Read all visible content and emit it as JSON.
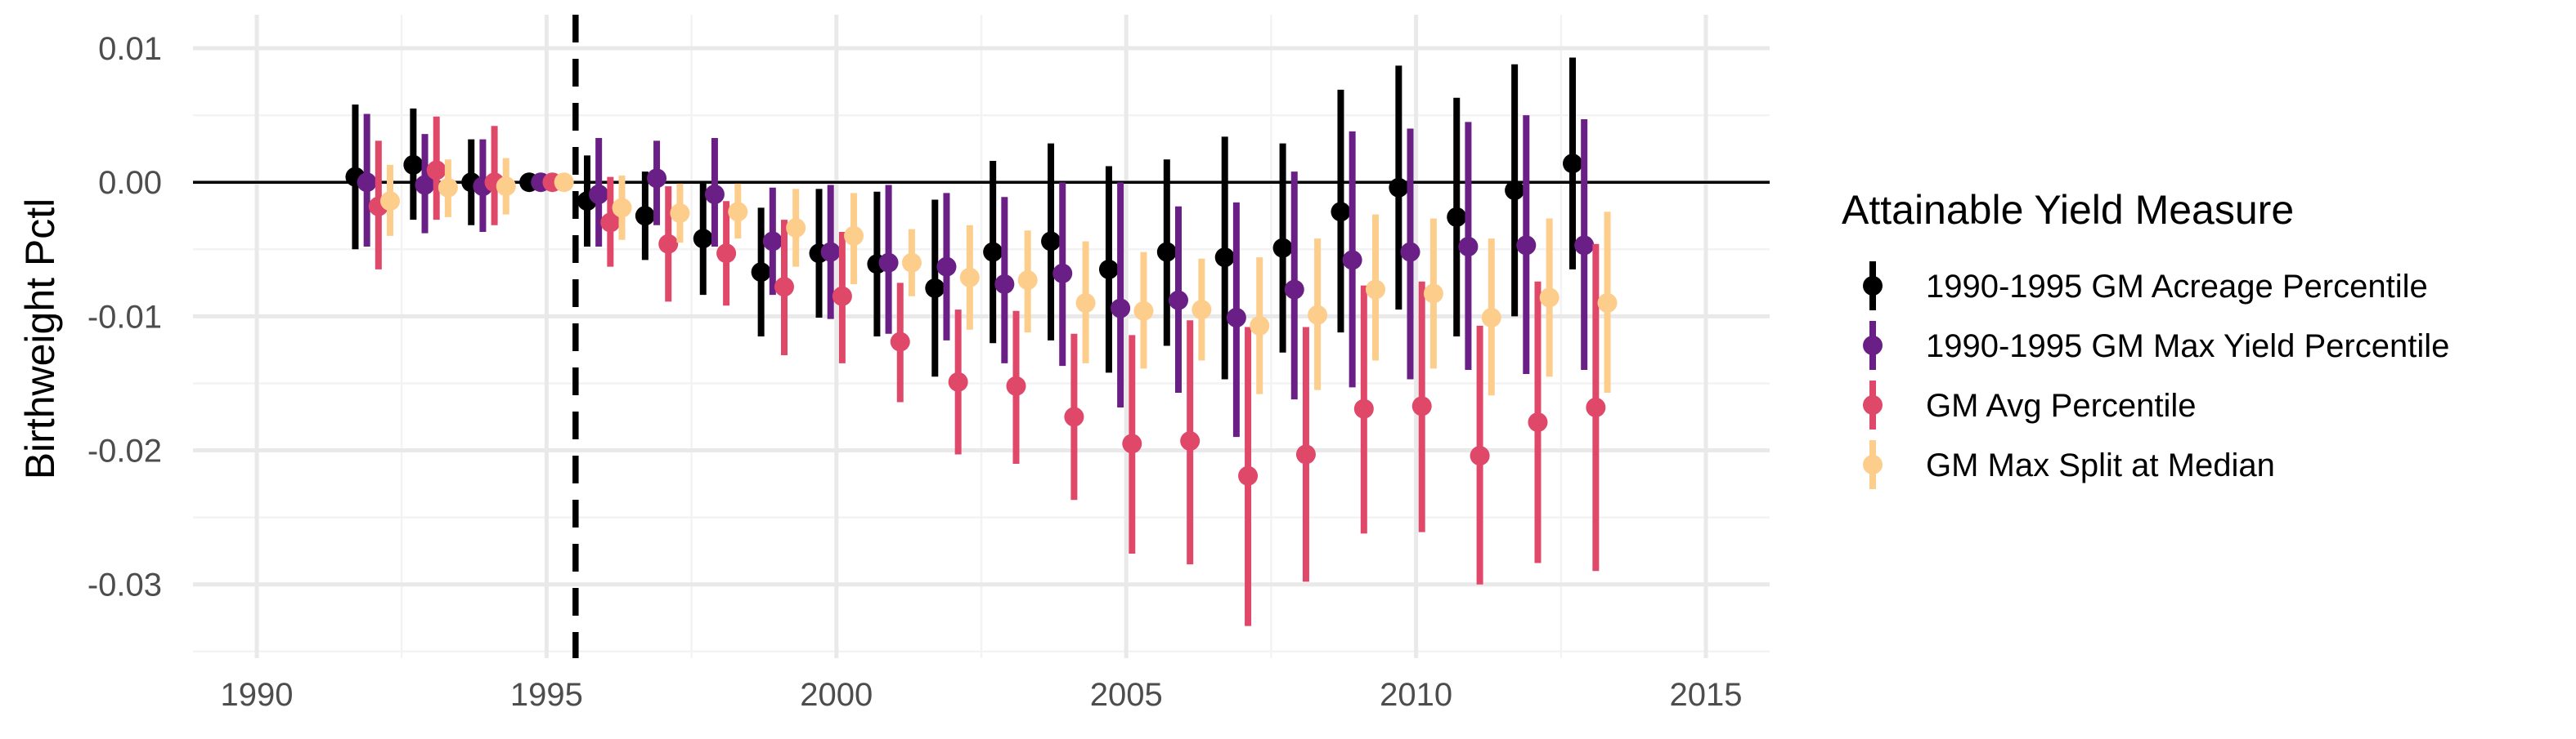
{
  "chart_data": {
    "type": "scatter",
    "title": "",
    "xlabel": "",
    "ylabel": "Birthweight Pctl",
    "xlim": [
      1988.9,
      2016.1
    ],
    "ylim": [
      -0.0355,
      0.0125
    ],
    "x_ticks": [
      1990,
      1995,
      2000,
      2005,
      2010,
      2015
    ],
    "x_tick_labels": [
      "1990",
      "1995",
      "2000",
      "2005",
      "2010",
      "2015"
    ],
    "y_ticks": [
      0.01,
      0.0,
      -0.01,
      -0.02,
      -0.03
    ],
    "y_tick_labels": [
      "0.01",
      "0.00",
      "-0.01",
      "-0.02",
      "-0.03"
    ],
    "grid": true,
    "hline_y": 0,
    "vline_x": 1995.5,
    "legend": {
      "title": "Attainable Yield Measure",
      "position": "right"
    },
    "dodge_width": 0.2,
    "series": [
      {
        "name": "1990-1995 GM Acreage Percentile",
        "color": "#000000",
        "x": [
          1992,
          1993,
          1994,
          1995,
          1996,
          1997,
          1998,
          1999,
          2000,
          2001,
          2002,
          2003,
          2004,
          2005,
          2006,
          2007,
          2008,
          2009,
          2010,
          2011,
          2012,
          2013
        ],
        "y": [
          0.0004,
          0.0013,
          0.0,
          0.0,
          -0.0014,
          -0.0025,
          -0.0042,
          -0.0067,
          -0.0053,
          -0.0061,
          -0.0079,
          -0.0052,
          -0.0044,
          -0.0065,
          -0.0052,
          -0.0056,
          -0.0049,
          -0.0022,
          -0.0004,
          -0.0026,
          -0.0006,
          0.0014
        ],
        "lo": [
          -0.005,
          -0.0028,
          -0.0032,
          0.0,
          -0.0048,
          -0.0058,
          -0.0084,
          -0.0115,
          -0.0101,
          -0.0115,
          -0.0145,
          -0.012,
          -0.0118,
          -0.0142,
          -0.0122,
          -0.0147,
          -0.0127,
          -0.0112,
          -0.0095,
          -0.0115,
          -0.01,
          -0.0065
        ],
        "hi": [
          0.0058,
          0.0055,
          0.0032,
          0.0,
          0.002,
          0.0008,
          0.0,
          -0.0019,
          -0.0005,
          -0.0007,
          -0.0013,
          0.0016,
          0.0029,
          0.0012,
          0.0017,
          0.0034,
          0.0029,
          0.0069,
          0.0087,
          0.0063,
          0.0088,
          0.0093
        ]
      },
      {
        "name": "1990-1995 GM Max Yield Percentile",
        "color": "#6a1f87",
        "x": [
          1992,
          1993,
          1994,
          1995,
          1996,
          1997,
          1998,
          1999,
          2000,
          2001,
          2002,
          2003,
          2004,
          2005,
          2006,
          2007,
          2008,
          2009,
          2010,
          2011,
          2012,
          2013
        ],
        "y": [
          0.0,
          -0.0002,
          -0.0003,
          0.0,
          -0.0009,
          0.0003,
          -0.0009,
          -0.0044,
          -0.0052,
          -0.006,
          -0.0063,
          -0.0076,
          -0.0068,
          -0.0094,
          -0.0088,
          -0.0101,
          -0.008,
          -0.0058,
          -0.0052,
          -0.0048,
          -0.0047,
          -0.0047
        ],
        "lo": [
          -0.0048,
          -0.0038,
          -0.0037,
          0.0,
          -0.0048,
          -0.0032,
          -0.0048,
          -0.0084,
          -0.0102,
          -0.0113,
          -0.0118,
          -0.0135,
          -0.0137,
          -0.0168,
          -0.0157,
          -0.019,
          -0.0162,
          -0.0153,
          -0.0147,
          -0.014,
          -0.0143,
          -0.014
        ],
        "hi": [
          0.0051,
          0.0036,
          0.0032,
          0.0,
          0.0033,
          0.0031,
          0.0033,
          -0.0004,
          -0.0002,
          -0.0002,
          -0.0008,
          -0.0011,
          0.0,
          0.0,
          -0.0018,
          -0.0015,
          0.0008,
          0.0038,
          0.004,
          0.0045,
          0.005,
          0.0047
        ]
      },
      {
        "name": "GM Avg Percentile",
        "color": "#e0486a",
        "x": [
          1992,
          1993,
          1994,
          1995,
          1996,
          1997,
          1998,
          1999,
          2000,
          2001,
          2002,
          2003,
          2004,
          2005,
          2006,
          2007,
          2008,
          2009,
          2010,
          2011,
          2012,
          2013
        ],
        "y": [
          -0.0018,
          0.0009,
          0.0,
          0.0,
          -0.003,
          -0.0046,
          -0.0053,
          -0.0078,
          -0.0085,
          -0.0119,
          -0.0149,
          -0.0152,
          -0.0175,
          -0.0195,
          -0.0193,
          -0.0219,
          -0.0203,
          -0.0169,
          -0.0167,
          -0.0204,
          -0.0179,
          -0.0168
        ],
        "lo": [
          -0.0065,
          -0.0028,
          -0.0032,
          0.0,
          -0.0063,
          -0.0089,
          -0.0092,
          -0.0129,
          -0.0135,
          -0.0164,
          -0.0203,
          -0.021,
          -0.0237,
          -0.0277,
          -0.0285,
          -0.0331,
          -0.0298,
          -0.0262,
          -0.0261,
          -0.03,
          -0.0284,
          -0.029
        ],
        "hi": [
          0.0031,
          0.0049,
          0.0042,
          0.0,
          0.0004,
          -0.0003,
          -0.0014,
          -0.0028,
          -0.0037,
          -0.0075,
          -0.0095,
          -0.0096,
          -0.0113,
          -0.0114,
          -0.0103,
          -0.0108,
          -0.0108,
          -0.0077,
          -0.0074,
          -0.0107,
          -0.0074,
          -0.0046
        ]
      },
      {
        "name": "GM Max Split at Median",
        "color": "#fdcd8c",
        "x": [
          1992,
          1993,
          1994,
          1995,
          1996,
          1997,
          1998,
          1999,
          2000,
          2001,
          2002,
          2003,
          2004,
          2005,
          2006,
          2007,
          2008,
          2009,
          2010,
          2011,
          2012,
          2013
        ],
        "y": [
          -0.0014,
          -0.0004,
          -0.0003,
          0.0,
          -0.0019,
          -0.0023,
          -0.0022,
          -0.0034,
          -0.004,
          -0.006,
          -0.0071,
          -0.0073,
          -0.009,
          -0.0096,
          -0.0095,
          -0.0107,
          -0.0099,
          -0.008,
          -0.0083,
          -0.0101,
          -0.0086,
          -0.009
        ],
        "lo": [
          -0.004,
          -0.0026,
          -0.0024,
          0.0,
          -0.0043,
          -0.0045,
          -0.0042,
          -0.0063,
          -0.0076,
          -0.0085,
          -0.011,
          -0.0112,
          -0.0135,
          -0.0139,
          -0.0133,
          -0.0158,
          -0.0155,
          -0.0133,
          -0.0139,
          -0.0159,
          -0.0145,
          -0.0157
        ],
        "hi": [
          0.0013,
          0.0017,
          0.0018,
          0.0,
          0.0005,
          -0.0001,
          -0.0001,
          -0.0005,
          -0.0008,
          -0.0035,
          -0.0032,
          -0.0036,
          -0.0044,
          -0.0052,
          -0.0057,
          -0.0056,
          -0.0042,
          -0.0024,
          -0.0027,
          -0.0042,
          -0.0027,
          -0.0022
        ]
      }
    ]
  }
}
